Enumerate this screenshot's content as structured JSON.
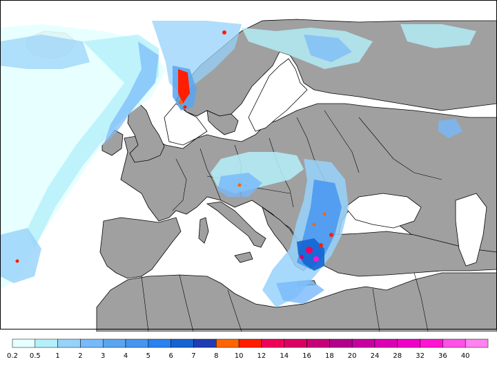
{
  "map": {
    "colors": {
      "sea": "#ffffff",
      "land": "#a0a0a0",
      "border": "#000000"
    }
  },
  "legend": {
    "labels": [
      "0.2",
      "0.5",
      "1",
      "2",
      "3",
      "4",
      "5",
      "6",
      "7",
      "8",
      "10",
      "12",
      "14",
      "16",
      "18",
      "20",
      "24",
      "28",
      "32",
      "36",
      "40"
    ],
    "colors": [
      "#e6ffff",
      "#b4f0fa",
      "#96d2fa",
      "#78b9fa",
      "#5aa5f0",
      "#4696f0",
      "#2882f0",
      "#1464d2",
      "#1e3cb4",
      "#ff6400",
      "#ff1e00",
      "#f0005a",
      "#dc0064",
      "#c80078",
      "#b4008c",
      "#c800a0",
      "#dc00b4",
      "#f000c8",
      "#ff14d2",
      "#ff50e6",
      "#ff82f0"
    ]
  }
}
